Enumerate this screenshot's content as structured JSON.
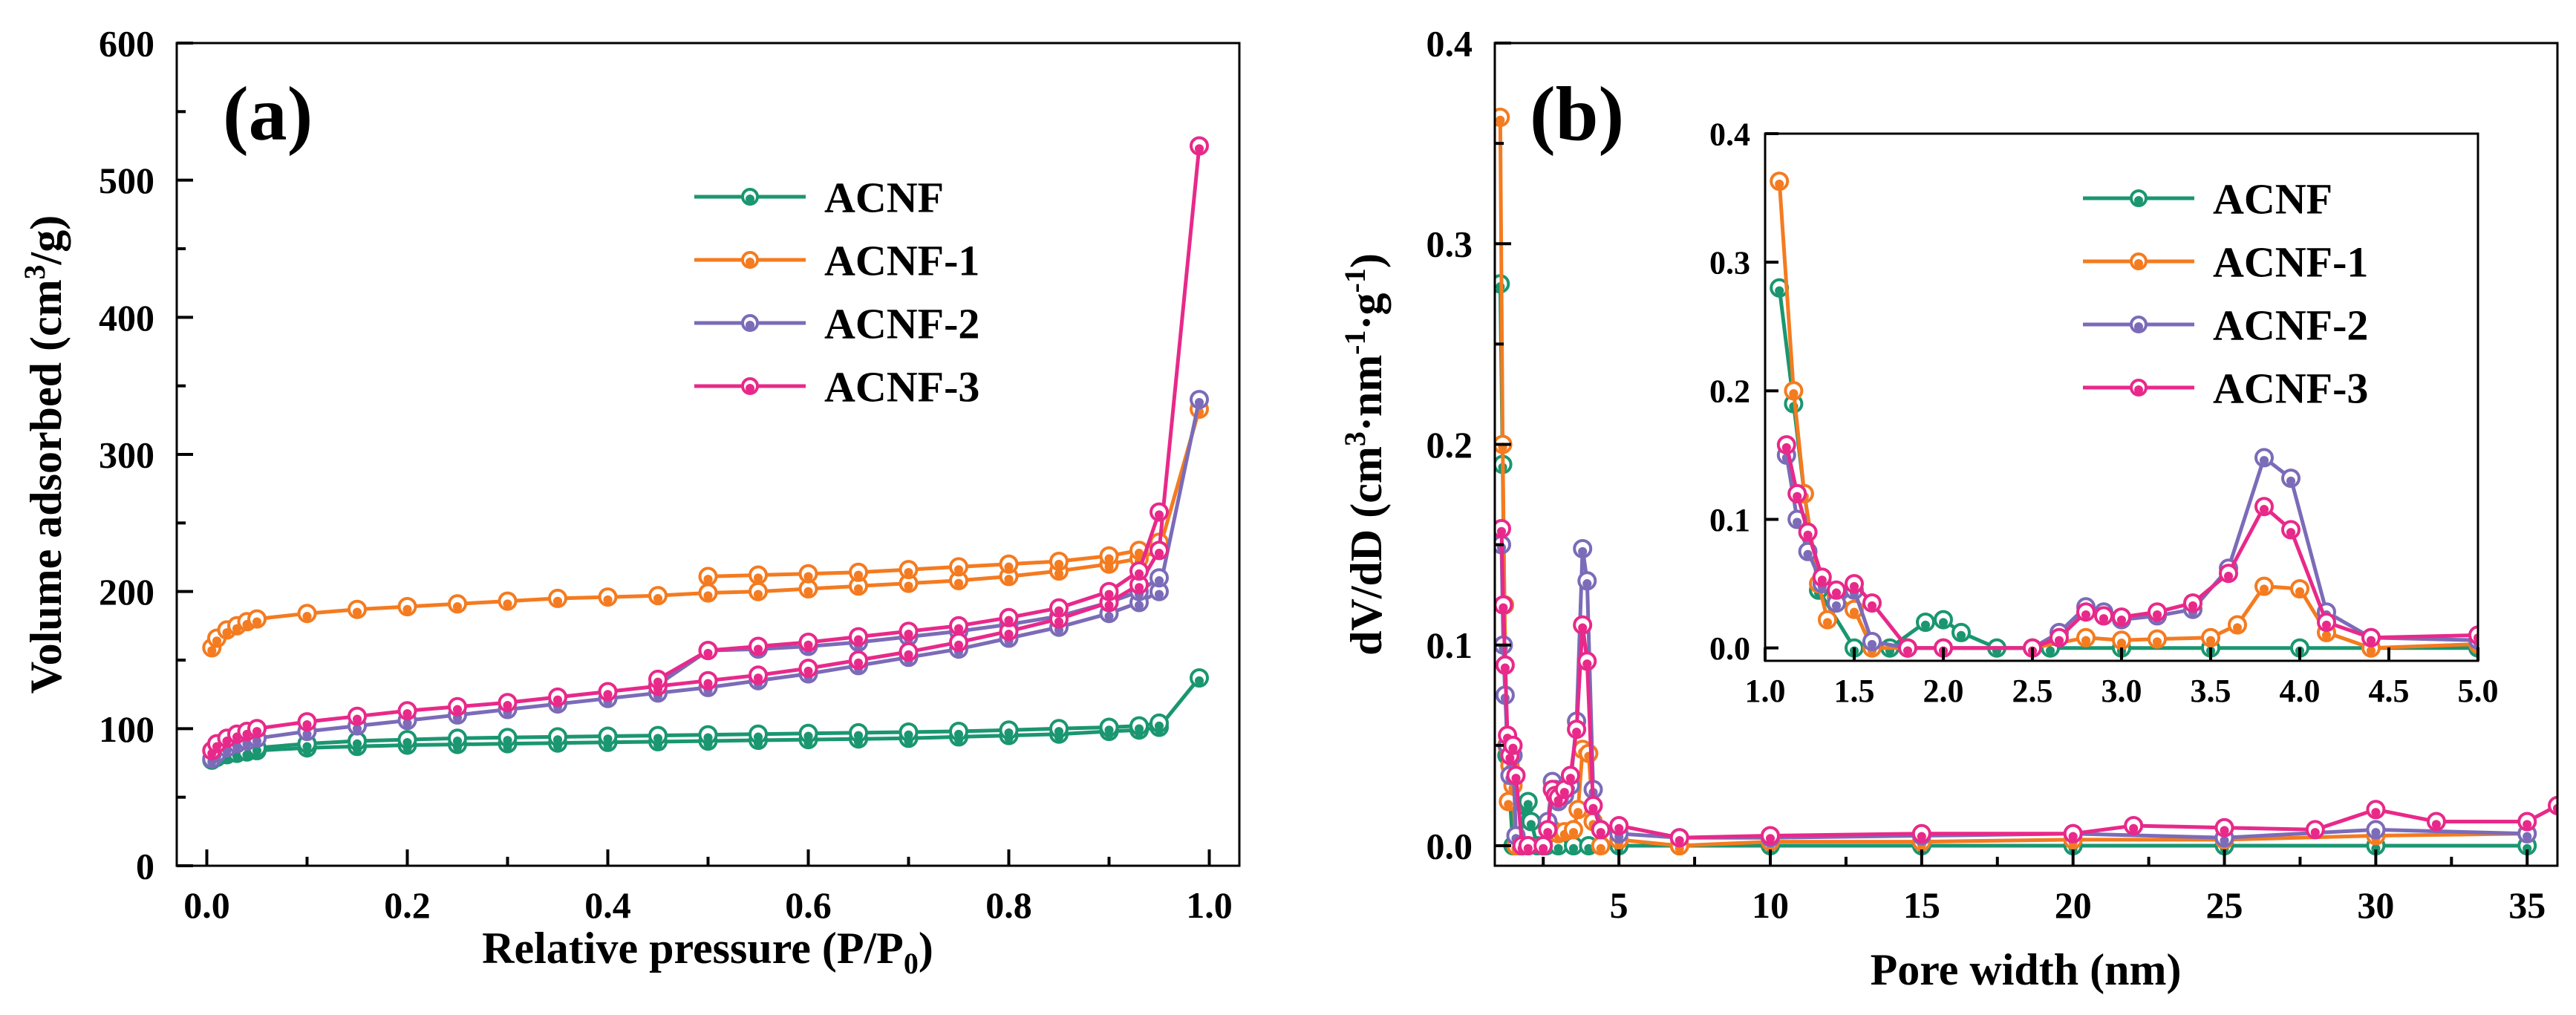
{
  "chart_data": [
    {
      "type": "line",
      "panel_label": "(a)",
      "xlabel": "Relative pressure (P/P",
      "xlabel_sub": "0",
      "xlabel_end": ")",
      "ylabel": "Volume adsorbed (cm",
      "ylabel_sup": "3",
      "ylabel_end": "/g)",
      "xlim": [
        -0.03,
        1.03
      ],
      "ylim": [
        0,
        600
      ],
      "xticks": [
        "0.0",
        "0.2",
        "0.4",
        "0.6",
        "0.8",
        "1.0"
      ],
      "xtick_values": [
        0,
        0.2,
        0.4,
        0.6,
        0.8,
        1.0
      ],
      "yticks": [
        "0",
        "100",
        "200",
        "300",
        "400",
        "500",
        "600"
      ],
      "ytick_values": [
        0,
        100,
        200,
        300,
        400,
        500,
        600
      ],
      "legend_position": "upper-right",
      "series": [
        {
          "name": "ACNF",
          "color": "#1a9670",
          "branches": [
            {
              "x": [
                0.005,
                0.01,
                0.02,
                0.03,
                0.04,
                0.05,
                0.1,
                0.15,
                0.2,
                0.25,
                0.3,
                0.35,
                0.4,
                0.45,
                0.5,
                0.55,
                0.6,
                0.65,
                0.7,
                0.75,
                0.8,
                0.85,
                0.9,
                0.93,
                0.95,
                0.99
              ],
              "y": [
                77,
                79,
                81,
                82,
                83,
                84,
                86,
                87,
                88,
                88.5,
                89,
                89.5,
                90,
                90.5,
                91,
                91.5,
                92,
                92.5,
                93,
                94,
                95,
                96,
                98,
                99,
                101,
                137
              ]
            },
            {
              "x": [
                0.95,
                0.93,
                0.9,
                0.85,
                0.8,
                0.75,
                0.7,
                0.65,
                0.6,
                0.55,
                0.5,
                0.45,
                0.4,
                0.35,
                0.3,
                0.25,
                0.2,
                0.15,
                0.1,
                0.05
              ],
              "y": [
                104,
                102,
                101,
                100,
                99,
                98,
                97.5,
                97,
                96.5,
                96,
                95.5,
                95,
                94.5,
                94,
                93.5,
                93,
                92,
                91,
                89,
                86
              ]
            }
          ]
        },
        {
          "name": "ACNF-1",
          "color": "#f47b20",
          "branches": [
            {
              "x": [
                0.005,
                0.01,
                0.02,
                0.03,
                0.04,
                0.05,
                0.1,
                0.15,
                0.2,
                0.25,
                0.3,
                0.35,
                0.4,
                0.45,
                0.5,
                0.55,
                0.6,
                0.65,
                0.7,
                0.75,
                0.8,
                0.85,
                0.9,
                0.93,
                0.95,
                0.99
              ],
              "y": [
                159,
                166,
                172,
                175,
                178,
                180,
                184,
                187,
                189,
                191,
                193,
                195,
                196,
                197,
                199,
                200,
                202,
                204,
                206,
                208,
                211,
                215,
                220,
                224,
                230,
                333
              ]
            },
            {
              "x": [
                0.95,
                0.93,
                0.9,
                0.85,
                0.8,
                0.75,
                0.7,
                0.65,
                0.6,
                0.55,
                0.5
              ],
              "y": [
                236,
                230,
                226,
                222,
                220,
                218,
                216,
                214,
                213,
                212,
                211
              ]
            }
          ]
        },
        {
          "name": "ACNF-2",
          "color": "#7b6bb8",
          "branches": [
            {
              "x": [
                0.005,
                0.01,
                0.02,
                0.03,
                0.04,
                0.05,
                0.1,
                0.15,
                0.2,
                0.25,
                0.3,
                0.35,
                0.4,
                0.45,
                0.5,
                0.55,
                0.6,
                0.65,
                0.7,
                0.75,
                0.8,
                0.85,
                0.9,
                0.93,
                0.95,
                0.99
              ],
              "y": [
                78,
                82,
                86,
                89,
                91,
                93,
                98,
                102,
                106,
                110,
                114,
                118,
                122,
                126,
                130,
                135,
                140,
                146,
                152,
                158,
                166,
                174,
                184,
                192,
                200,
                340
              ]
            },
            {
              "x": [
                0.95,
                0.93,
                0.9,
                0.85,
                0.8,
                0.75,
                0.7,
                0.65,
                0.6,
                0.55,
                0.5,
                0.45
              ],
              "y": [
                210,
                200,
                192,
                182,
                176,
                171,
                167,
                163,
                160,
                158,
                157,
                132
              ]
            }
          ]
        },
        {
          "name": "ACNF-3",
          "color": "#e8298a",
          "branches": [
            {
              "x": [
                0.005,
                0.01,
                0.02,
                0.03,
                0.04,
                0.05,
                0.1,
                0.15,
                0.2,
                0.25,
                0.3,
                0.35,
                0.4,
                0.45,
                0.5,
                0.55,
                0.6,
                0.65,
                0.7,
                0.75,
                0.8,
                0.85,
                0.9,
                0.93,
                0.95,
                0.99
              ],
              "y": [
                84,
                89,
                93,
                96,
                98,
                100,
                105,
                109,
                113,
                116,
                119,
                123,
                127,
                131,
                135,
                139,
                144,
                150,
                156,
                163,
                171,
                180,
                192,
                205,
                230,
                525
              ]
            },
            {
              "x": [
                0.95,
                0.93,
                0.9,
                0.85,
                0.8,
                0.75,
                0.7,
                0.65,
                0.6,
                0.55,
                0.5,
                0.45
              ],
              "y": [
                258,
                215,
                200,
                188,
                181,
                175,
                171,
                167,
                163,
                160,
                157,
                136
              ]
            }
          ]
        }
      ]
    },
    {
      "type": "line",
      "panel_label": "(b)",
      "xlabel": "Pore width (nm)",
      "ylabel": "dV/dD (cm",
      "ylabel_sup": "3",
      "ylabel_mid": "·nm",
      "ylabel_sup2": "-1",
      "ylabel_mid2": "·g",
      "ylabel_sup3": "-1",
      "ylabel_end": ")",
      "xlim": [
        0.9,
        36
      ],
      "ylim": [
        -0.01,
        0.4
      ],
      "xticks": [
        "5",
        "10",
        "15",
        "20",
        "25",
        "30",
        "35"
      ],
      "xtick_values": [
        5,
        10,
        15,
        20,
        25,
        30,
        35
      ],
      "yticks": [
        "0.0",
        "0.1",
        "0.2",
        "0.3",
        "0.4"
      ],
      "ytick_values": [
        0,
        0.1,
        0.2,
        0.3,
        0.4
      ],
      "series": [
        {
          "name": "ACNF",
          "color": "#1a9670",
          "x": [
            1.08,
            1.16,
            1.22,
            1.3,
            1.5,
            1.7,
            1.9,
            2.0,
            2.1,
            2.3,
            2.6,
            3.0,
            3.5,
            4.0,
            5,
            7,
            10,
            15,
            20,
            25,
            30,
            35
          ],
          "y": [
            0.28,
            0.19,
            0.12,
            0.045,
            0.0,
            0.0,
            0.02,
            0.022,
            0.012,
            0.0,
            0.0,
            0.0,
            0.0,
            0.0,
            0.0,
            0.0,
            0.0,
            0.0,
            0.0,
            0.0,
            0.0,
            0.0
          ]
        },
        {
          "name": "ACNF-1",
          "color": "#f47b20",
          "x": [
            1.08,
            1.16,
            1.22,
            1.3,
            1.35,
            1.4,
            1.5,
            1.6,
            1.8,
            2.0,
            2.5,
            2.8,
            3.0,
            3.2,
            3.5,
            3.65,
            3.8,
            4.0,
            4.15,
            4.4,
            5,
            7,
            10,
            15,
            20,
            25,
            30,
            35
          ],
          "y": [
            0.363,
            0.2,
            0.12,
            0.05,
            0.022,
            0.04,
            0.03,
            0.0,
            0.0,
            0.0,
            0.0,
            0.008,
            0.006,
            0.007,
            0.008,
            0.018,
            0.048,
            0.046,
            0.012,
            0.0,
            0.003,
            0.0,
            0.002,
            0.002,
            0.003,
            0.003,
            0.005,
            0.006
          ]
        },
        {
          "name": "ACNF-2",
          "color": "#7b6bb8",
          "x": [
            1.12,
            1.18,
            1.24,
            1.32,
            1.4,
            1.5,
            1.6,
            1.8,
            2.0,
            2.5,
            2.65,
            2.8,
            2.9,
            3.0,
            3.2,
            3.4,
            3.6,
            3.8,
            3.95,
            4.15,
            4.4,
            5,
            7,
            10,
            15,
            20,
            25,
            30,
            35
          ],
          "y": [
            0.15,
            0.1,
            0.075,
            0.05,
            0.035,
            0.045,
            0.005,
            0.0,
            0.0,
            0.0,
            0.012,
            0.032,
            0.028,
            0.022,
            0.025,
            0.03,
            0.062,
            0.148,
            0.132,
            0.028,
            0.008,
            0.006,
            0.004,
            0.004,
            0.005,
            0.006,
            0.004,
            0.008,
            0.006
          ]
        },
        {
          "name": "ACNF-3",
          "color": "#e8298a",
          "x": [
            1.12,
            1.18,
            1.24,
            1.32,
            1.4,
            1.5,
            1.6,
            1.8,
            2.0,
            2.5,
            2.65,
            2.8,
            2.9,
            3.0,
            3.2,
            3.4,
            3.6,
            3.8,
            3.95,
            4.15,
            4.4,
            5,
            7,
            10,
            15,
            20,
            22,
            25,
            28,
            30,
            32,
            35,
            36
          ],
          "y": [
            0.158,
            0.12,
            0.09,
            0.055,
            0.045,
            0.05,
            0.035,
            0.0,
            0.0,
            0.0,
            0.008,
            0.028,
            0.025,
            0.024,
            0.028,
            0.035,
            0.058,
            0.11,
            0.092,
            0.02,
            0.008,
            0.01,
            0.004,
            0.005,
            0.006,
            0.006,
            0.01,
            0.009,
            0.008,
            0.018,
            0.012,
            0.012,
            0.02
          ]
        }
      ],
      "inset": {
        "xlim": [
          1.0,
          5.0
        ],
        "ylim": [
          -0.01,
          0.4
        ],
        "xticks": [
          "1.0",
          "1.5",
          "2.0",
          "2.5",
          "3.0",
          "3.5",
          "4.0",
          "4.5",
          "5.0"
        ],
        "xtick_values": [
          1.0,
          1.5,
          2.0,
          2.5,
          3.0,
          3.5,
          4.0,
          4.5,
          5.0
        ],
        "yticks": [
          "0.0",
          "0.1",
          "0.2",
          "0.3",
          "0.4"
        ],
        "ytick_values": [
          0,
          0.1,
          0.2,
          0.3,
          0.4
        ],
        "legend_position": "upper-right"
      }
    }
  ]
}
